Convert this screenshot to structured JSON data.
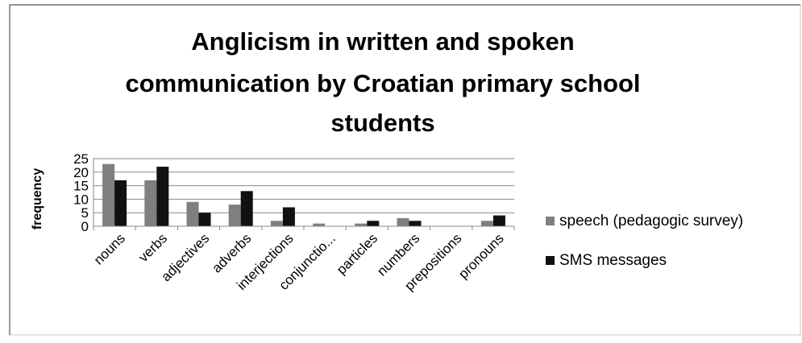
{
  "chart_data": {
    "type": "bar",
    "title_lines": [
      "Anglicism in written and spoken",
      "communication by Croatian primary school",
      "students"
    ],
    "xlabel": "",
    "ylabel": "frequency",
    "ylim": [
      0,
      25
    ],
    "yticks": [
      "0",
      "5",
      "10",
      "15",
      "20",
      "25"
    ],
    "grid": true,
    "legend_position": "right",
    "categories": [
      "nouns",
      "verbs",
      "adjectives",
      "adverbs",
      "interjections",
      "conjunctio...",
      "particles",
      "numbers",
      "prepositions",
      "pronouns"
    ],
    "series": [
      {
        "name": "speech (pedagogic survey)",
        "color": "#7f7f7f",
        "values": [
          23,
          17,
          9,
          8,
          2,
          1,
          1,
          3,
          0,
          2
        ]
      },
      {
        "name": "SMS messages",
        "color": "#111111",
        "values": [
          17,
          22,
          5,
          13,
          7,
          0,
          2,
          2,
          0,
          4
        ]
      }
    ]
  }
}
